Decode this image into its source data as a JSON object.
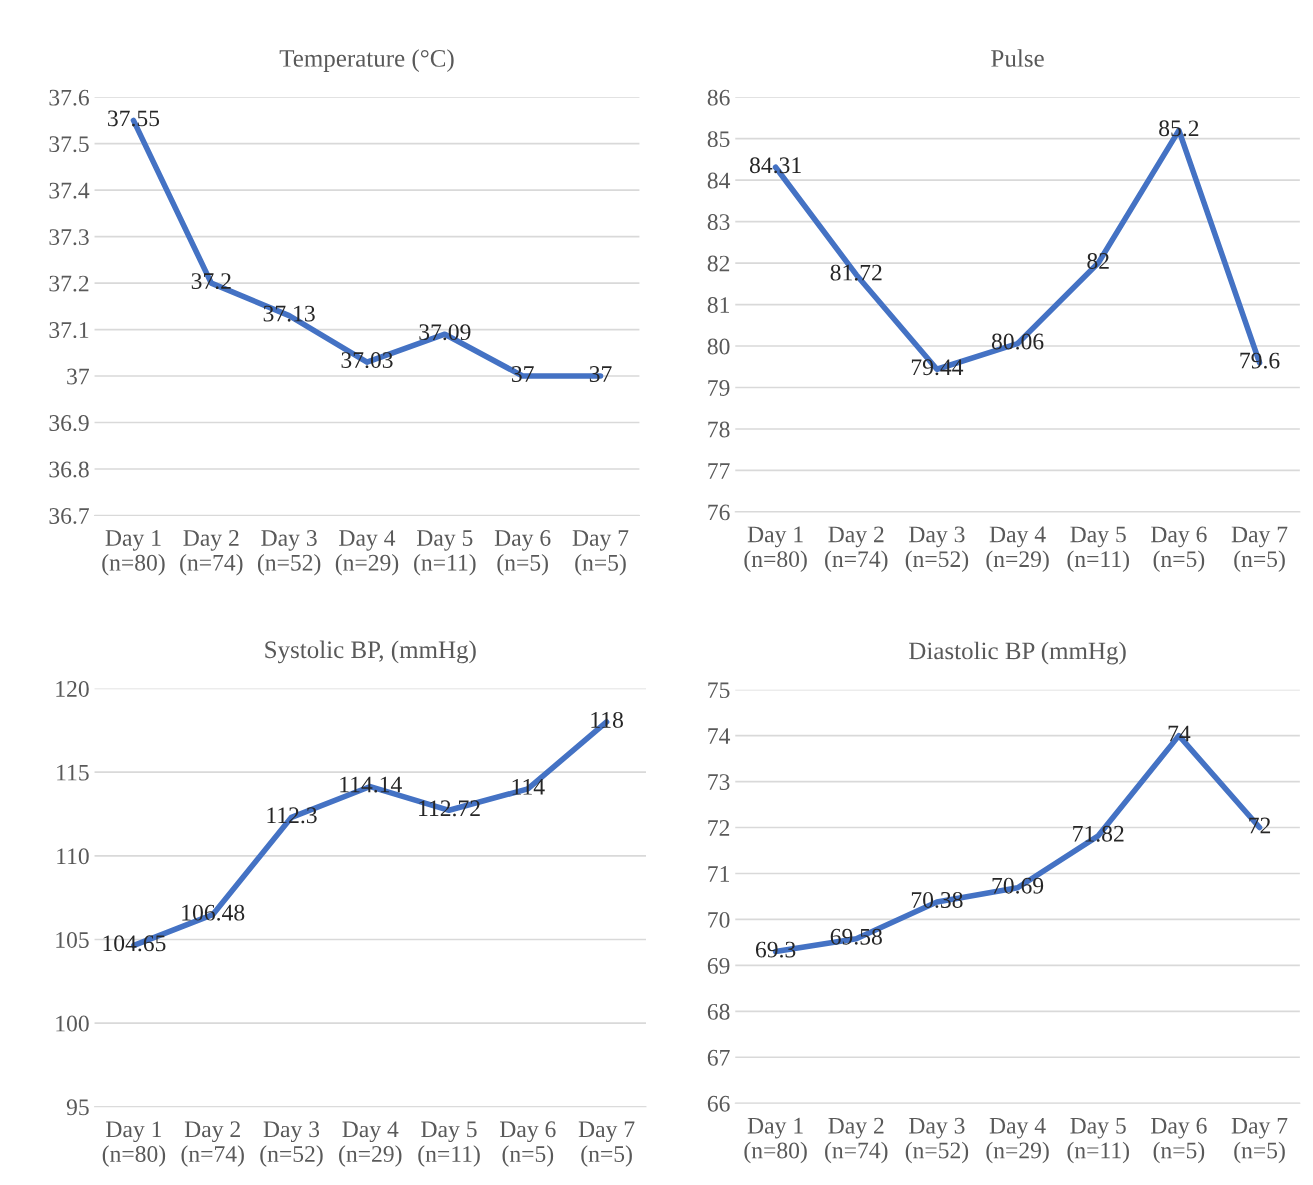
{
  "chart_data": [
    {
      "type": "line",
      "title": "Temperature (°C)",
      "categories": [
        "Day 1\n(n=80)",
        "Day 2\n(n=74)",
        "Day 3\n(n=52)",
        "Day 4\n(n=29)",
        "Day 5\n(n=11)",
        "Day 6\n(n=5)",
        "Day 7\n(n=5)"
      ],
      "series": [
        {
          "color": "#4472c4",
          "values": [
            37.55,
            37.2,
            37.13,
            37.03,
            37.09,
            37,
            37
          ]
        }
      ],
      "ylim": [
        36.7,
        37.6
      ],
      "yticks": [
        36.7,
        36.8,
        36.9,
        37,
        37.1,
        37.2,
        37.3,
        37.4,
        37.5,
        37.6
      ],
      "grid": "y",
      "data_labels": true,
      "legend": false,
      "marker": "none",
      "line_style": "solid"
    },
    {
      "type": "line",
      "title": "Pulse",
      "categories": [
        "Day 1\n(n=80)",
        "Day 2\n(n=74)",
        "Day 3\n(n=52)",
        "Day 4\n(n=29)",
        "Day 5\n(n=11)",
        "Day 6\n(n=5)",
        "Day 7\n(n=5)"
      ],
      "series": [
        {
          "color": "#4472c4",
          "values": [
            84.31,
            81.72,
            79.44,
            80.06,
            82,
            85.2,
            79.6
          ]
        }
      ],
      "ylim": [
        76,
        86
      ],
      "yticks": [
        76,
        77,
        78,
        79,
        80,
        81,
        82,
        83,
        84,
        85,
        86
      ],
      "grid": "y",
      "data_labels": true,
      "legend": false,
      "marker": "none",
      "line_style": "solid"
    },
    {
      "type": "line",
      "title": "Systolic BP, (mmHg)",
      "categories": [
        "Day 1\n(n=80)",
        "Day 2\n(n=74)",
        "Day 3\n(n=52)",
        "Day 4\n(n=29)",
        "Day 5\n(n=11)",
        "Day 6\n(n=5)",
        "Day 7\n(n=5)"
      ],
      "series": [
        {
          "color": "#4472c4",
          "values": [
            104.65,
            106.48,
            112.3,
            114.14,
            112.72,
            114,
            118
          ]
        }
      ],
      "ylim": [
        95,
        120
      ],
      "yticks": [
        95,
        100,
        105,
        110,
        115,
        120
      ],
      "grid": "y",
      "data_labels": true,
      "legend": false,
      "marker": "none",
      "line_style": "solid"
    },
    {
      "type": "line",
      "title": "Diastolic BP (mmHg)",
      "categories": [
        "Day 1\n(n=80)",
        "Day 2\n(n=74)",
        "Day 3\n(n=52)",
        "Day 4\n(n=29)",
        "Day 5\n(n=11)",
        "Day 6\n(n=5)",
        "Day 7\n(n=5)"
      ],
      "series": [
        {
          "color": "#4472c4",
          "values": [
            69.3,
            69.58,
            70.38,
            70.69,
            71.82,
            74,
            72
          ]
        }
      ],
      "ylim": [
        66,
        75
      ],
      "yticks": [
        66,
        67,
        68,
        69,
        70,
        71,
        72,
        73,
        74,
        75
      ],
      "grid": "y",
      "data_labels": true,
      "legend": false,
      "marker": "none",
      "line_style": "solid"
    }
  ]
}
